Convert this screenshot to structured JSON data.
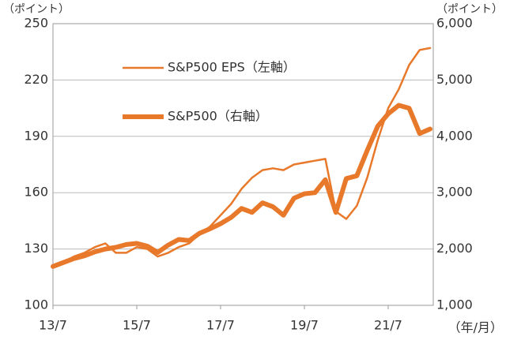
{
  "chart_data": {
    "type": "line",
    "y_label": "（ポイント）",
    "y2_label": "（ポイント）",
    "x_label": "（年/月）",
    "categories": [
      "13/7",
      null,
      null,
      null,
      null,
      null,
      null,
      null,
      "15/7",
      null,
      null,
      null,
      null,
      null,
      null,
      null,
      "17/7",
      null,
      null,
      null,
      null,
      null,
      null,
      null,
      "19/7",
      null,
      null,
      null,
      null,
      null,
      null,
      null,
      "21/7",
      null,
      null,
      null,
      null
    ],
    "series": [
      {
        "name": "S&P500 EPS（左軸）",
        "color": "#e8782a",
        "width": 2.5,
        "axis": "y",
        "values": [
          120,
          123,
          126,
          128,
          131,
          133,
          128,
          128,
          131,
          130,
          126,
          128,
          131,
          133,
          138,
          142,
          148,
          154,
          162,
          168,
          172,
          173,
          172,
          175,
          176,
          177,
          178,
          150,
          146,
          153,
          168,
          188,
          205,
          215,
          228,
          236,
          237
        ]
      },
      {
        "name": "S&P500（右軸）",
        "color": "#e8782a",
        "width": 6,
        "axis": "y2",
        "values": [
          1690,
          1760,
          1830,
          1880,
          1950,
          2000,
          2030,
          2080,
          2100,
          2050,
          1940,
          2070,
          2170,
          2150,
          2280,
          2360,
          2450,
          2560,
          2720,
          2650,
          2820,
          2750,
          2600,
          2900,
          2980,
          3000,
          3230,
          2650,
          3250,
          3300,
          3750,
          4180,
          4400,
          4550,
          4500,
          4050,
          4130
        ]
      }
    ],
    "ylim": [
      100,
      250
    ],
    "yticks": [
      100,
      130,
      160,
      190,
      220,
      250
    ],
    "y2lim": [
      1000,
      6000
    ],
    "y2ticks": [
      {
        "value": 1000,
        "label": "1,000"
      },
      {
        "value": 2000,
        "label": "2,000"
      },
      {
        "value": 3000,
        "label": "3,000"
      },
      {
        "value": 4000,
        "label": "4,000"
      },
      {
        "value": 5000,
        "label": "5,000"
      },
      {
        "value": 6000,
        "label": "6,000"
      }
    ],
    "grid": true
  }
}
